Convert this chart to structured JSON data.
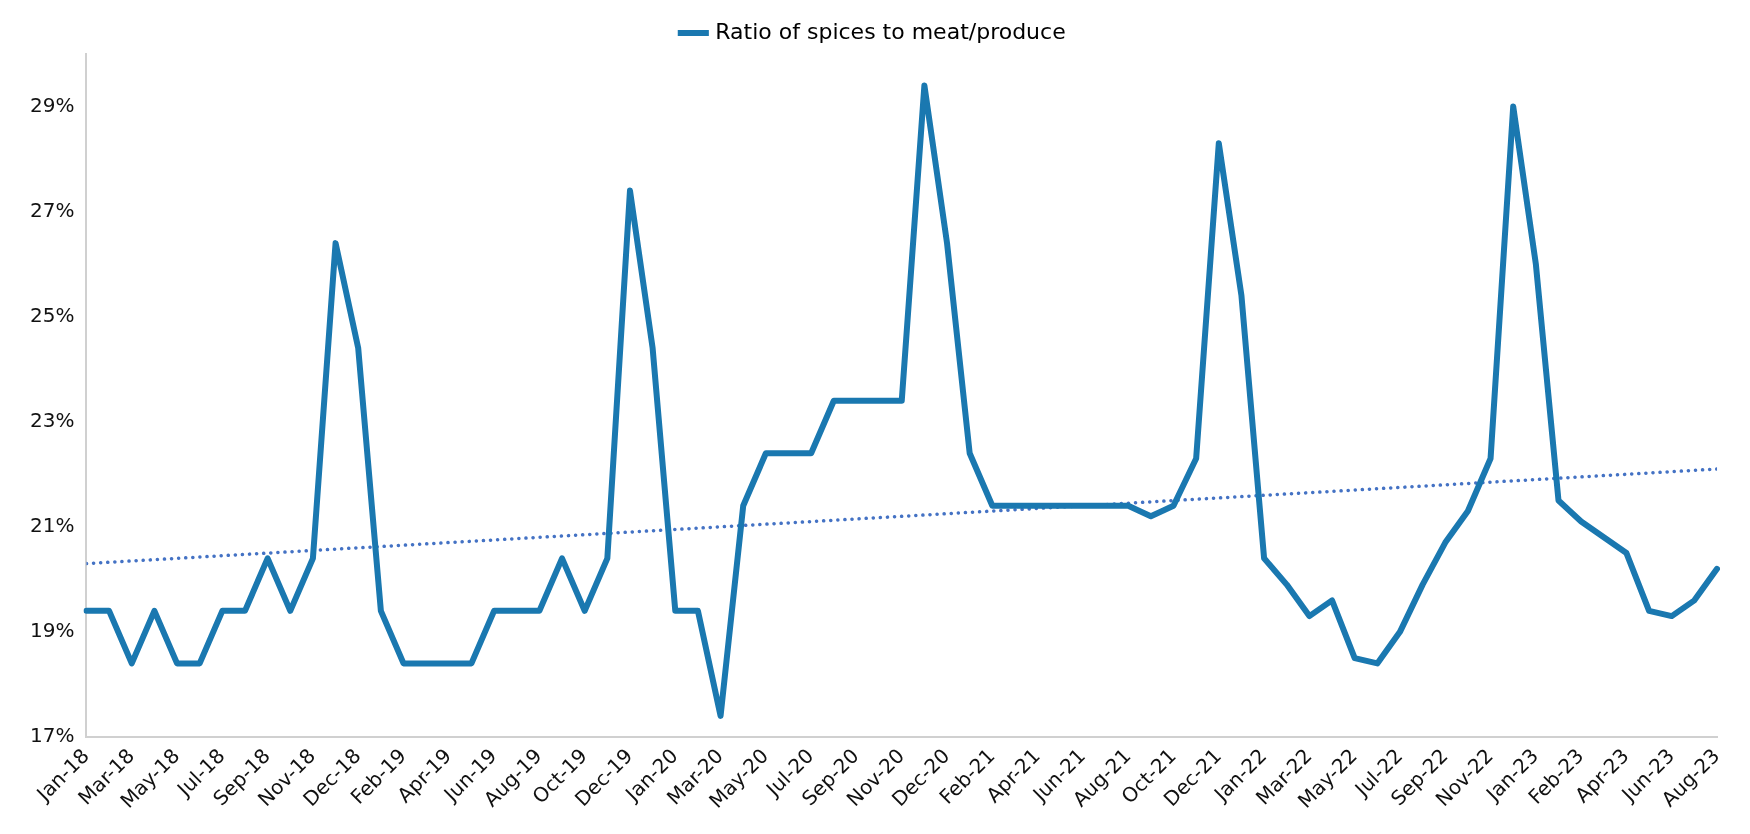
{
  "chart_data": {
    "type": "line",
    "categories": [
      "Jan-18",
      null,
      "Mar-18",
      null,
      "May-18",
      null,
      "Jul-18",
      null,
      "Sep-18",
      null,
      "Nov-18",
      null,
      "Dec-18",
      null,
      "Feb-19",
      null,
      "Apr-19",
      null,
      "Jun-19",
      null,
      "Aug-19",
      null,
      "Oct-19",
      null,
      "Dec-19",
      null,
      "Jan-20",
      null,
      "Mar-20",
      null,
      "May-20",
      null,
      "Jul-20",
      null,
      "Sep-20",
      null,
      "Nov-20",
      null,
      "Dec-20",
      null,
      "Feb-21",
      null,
      "Apr-21",
      null,
      "Jun-21",
      null,
      "Aug-21",
      null,
      "Oct-21",
      null,
      "Dec-21",
      null,
      "Jan-22",
      null,
      "Mar-22",
      null,
      "May-22",
      null,
      "Jul-22",
      null,
      "Sep-22",
      null,
      "Nov-22",
      null,
      "Jan-23",
      null,
      "Feb-23",
      null,
      "Apr-23",
      null,
      "Jun-23",
      null,
      "Aug-23"
    ],
    "series": [
      {
        "name": "Ratio of spices to meat/produce",
        "color": "#1a78b0",
        "values": [
          19.4,
          19.4,
          18.4,
          19.4,
          18.4,
          18.4,
          19.4,
          19.4,
          20.4,
          19.4,
          20.4,
          26.4,
          24.4,
          19.4,
          18.4,
          18.4,
          18.4,
          18.4,
          19.4,
          19.4,
          19.4,
          20.4,
          19.4,
          20.4,
          27.4,
          24.4,
          19.4,
          19.4,
          17.4,
          21.4,
          22.4,
          22.4,
          22.4,
          23.4,
          23.4,
          23.4,
          23.4,
          29.4,
          26.4,
          22.4,
          21.4,
          21.4,
          21.4,
          21.4,
          21.4,
          21.4,
          21.4,
          21.2,
          21.4,
          22.3,
          28.3,
          25.4,
          20.4,
          19.9,
          19.3,
          19.6,
          18.5,
          18.4,
          19.0,
          19.9,
          20.7,
          21.3,
          22.3,
          29.0,
          26.0,
          21.5,
          21.1,
          20.8,
          20.5,
          19.4,
          19.3,
          19.6,
          20.2
        ]
      },
      {
        "type": "line",
        "color": "#4472c4",
        "line_style": "dotted",
        "x": [
          "Jan-18",
          "Aug-23"
        ],
        "values": [
          20.3,
          22.1
        ]
      }
    ],
    "yticks": [
      {
        "value": 17,
        "label": "17%"
      },
      {
        "value": 19,
        "label": "19%"
      },
      {
        "value": 21,
        "label": "21%"
      },
      {
        "value": 23,
        "label": "23%"
      },
      {
        "value": 25,
        "label": "25%"
      },
      {
        "value": 27,
        "label": "27%"
      },
      {
        "value": 29,
        "label": "29%"
      }
    ],
    "ylim": [
      17,
      30
    ],
    "grid": false,
    "legend": "top",
    "marker": "none"
  }
}
